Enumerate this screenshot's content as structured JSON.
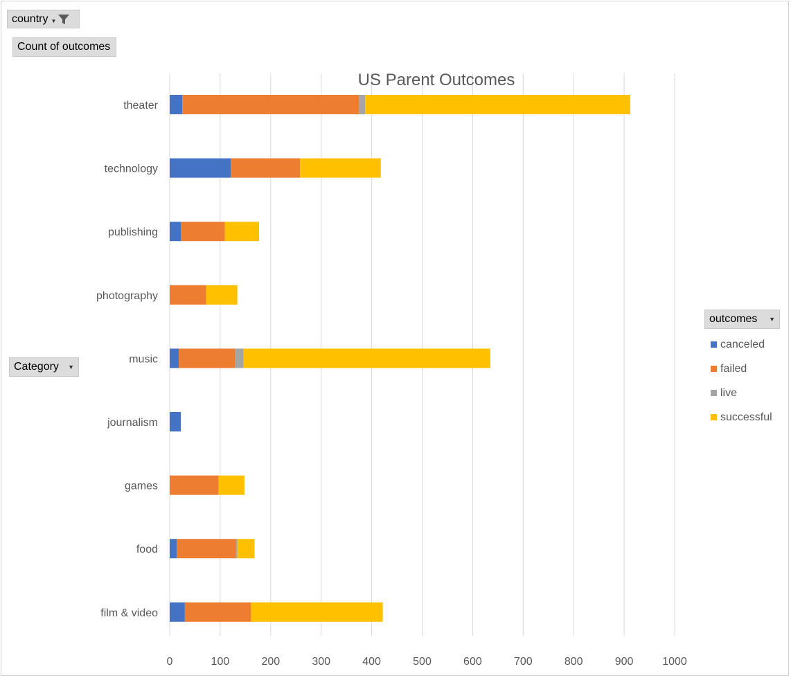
{
  "filters": {
    "country_label": "country",
    "values_label": "Count of outcomes",
    "category_label": "Category",
    "outcomes_label": "outcomes"
  },
  "colors": {
    "canceled": "#4472c4",
    "failed": "#ed7d31",
    "live": "#a5a5a5",
    "successful": "#ffc000"
  },
  "chart_data": {
    "type": "bar",
    "orientation": "horizontal",
    "stacked": true,
    "title": "US Parent Outcomes",
    "categories": [
      "theater",
      "technology",
      "publishing",
      "photography",
      "music",
      "journalism",
      "games",
      "food",
      "film & video"
    ],
    "series": [
      {
        "name": "canceled",
        "values": [
          25,
          121,
          22,
          0,
          18,
          22,
          0,
          14,
          30
        ]
      },
      {
        "name": "failed",
        "values": [
          350,
          137,
          87,
          72,
          111,
          0,
          97,
          117,
          131
        ]
      },
      {
        "name": "live",
        "values": [
          12,
          0,
          0,
          0,
          17,
          0,
          0,
          3,
          0
        ]
      },
      {
        "name": "successful",
        "values": [
          525,
          160,
          68,
          62,
          489,
          0,
          51,
          34,
          261
        ]
      }
    ],
    "xticks": [
      "0",
      "100",
      "200",
      "300",
      "400",
      "500",
      "600",
      "700",
      "800",
      "900",
      "1000"
    ],
    "xlim": [
      0,
      1000
    ],
    "grid": true,
    "legend_position": "right"
  }
}
